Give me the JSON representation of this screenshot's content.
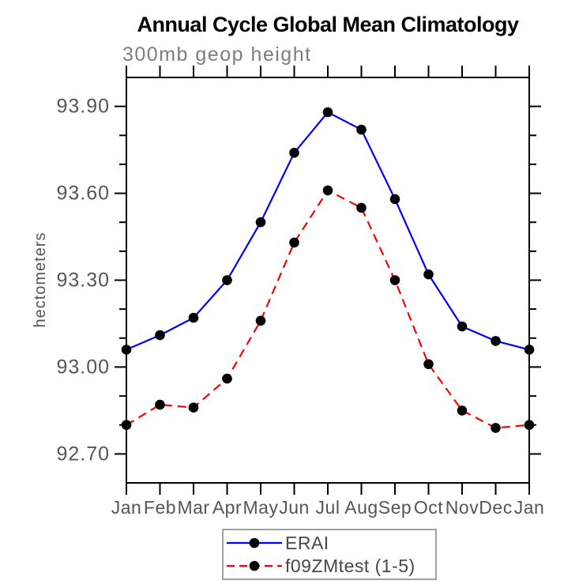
{
  "chart_data": {
    "type": "line",
    "title": "Annual Cycle Global Mean Climatology",
    "subtitle": "300mb geop height",
    "ylabel": "hectometers",
    "xlabel": "",
    "categories": [
      "Jan",
      "Feb",
      "Mar",
      "Apr",
      "May",
      "Jun",
      "Jul",
      "Aug",
      "Sep",
      "Oct",
      "Nov",
      "Dec",
      "Jan"
    ],
    "ylim": [
      92.6,
      94.0
    ],
    "yticks_major": [
      {
        "label": "93.90",
        "value": 93.9
      },
      {
        "label": "93.60",
        "value": 93.6
      },
      {
        "label": "93.30",
        "value": 93.3
      },
      {
        "label": "93.00",
        "value": 93.0
      },
      {
        "label": "92.70",
        "value": 92.7
      }
    ],
    "ytick_minor_step": 0.1,
    "grid": false,
    "legend_position": "bottom-center",
    "axis_color": "#000000",
    "tick_label_color": "#555555",
    "marker": "filled-circle",
    "marker_color": "#000000",
    "series": [
      {
        "name": "ERAI",
        "color": "#0000ff",
        "style": "solid",
        "values": [
          93.06,
          93.11,
          93.17,
          93.3,
          93.5,
          93.74,
          93.88,
          93.82,
          93.58,
          93.32,
          93.14,
          93.09,
          93.06
        ]
      },
      {
        "name": "f09ZMtest (1-5)",
        "color": "#ff0000",
        "style": "dashed",
        "values": [
          92.8,
          92.87,
          92.86,
          92.96,
          93.16,
          93.43,
          93.61,
          93.55,
          93.3,
          93.01,
          92.85,
          92.79,
          92.8
        ]
      }
    ]
  }
}
